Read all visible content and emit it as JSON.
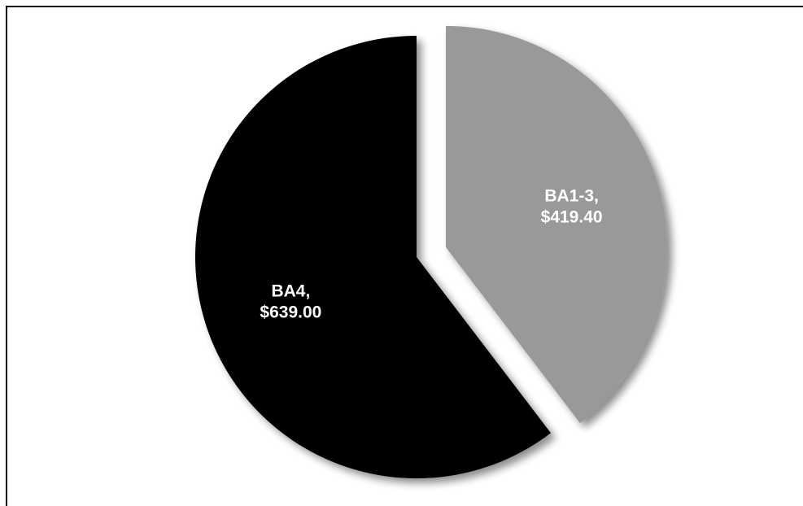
{
  "chart_data": {
    "type": "pie",
    "title": "",
    "slices": [
      {
        "name": "BA1-3",
        "value": 419.4,
        "label_name": "BA1-3,",
        "label_value": "$419.40",
        "color": "#999999",
        "exploded": true
      },
      {
        "name": "BA4",
        "value": 639.0,
        "label_name": "BA4,",
        "label_value": "$639.00",
        "color": "#000000",
        "exploded": false
      }
    ],
    "legend": "none",
    "start": "12 o'clock",
    "direction": "clockwise"
  }
}
